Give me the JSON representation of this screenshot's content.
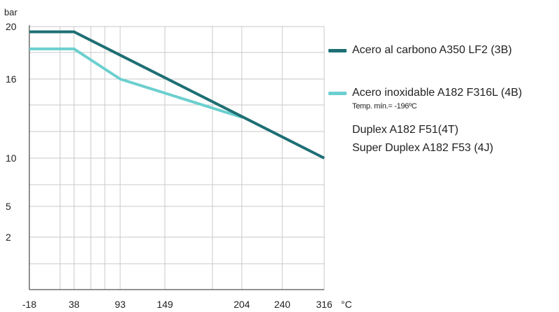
{
  "chart_data": {
    "type": "line",
    "ylabel": "bar",
    "xlabel": "°C",
    "x_ticks": [
      "-18",
      "38",
      "93",
      "149",
      "204",
      "240",
      "316"
    ],
    "y_ticks": [
      "20",
      "16",
      "10",
      "5",
      "2"
    ],
    "grid": true,
    "legend_position": "right",
    "series": [
      {
        "name": "Acero al carbono A350 LF2 (3B)",
        "color": "#1e6f74",
        "points": [
          [
            "-18",
            19.6
          ],
          [
            "38",
            19.6
          ],
          [
            "316",
            10.0
          ]
        ]
      },
      {
        "name": "Acero inoxidable A182 F316L (4B)",
        "note": "Temp. mín.= -196ºC",
        "color": "#6ccfcf",
        "points": [
          [
            "-18",
            18.3
          ],
          [
            "38",
            18.3
          ],
          [
            "93",
            16.0
          ],
          [
            "204",
            13.1
          ]
        ]
      }
    ],
    "legend_extra": [
      "Duplex A182 F51(4T)",
      "Super Duplex A182 F53 (4J)"
    ]
  }
}
